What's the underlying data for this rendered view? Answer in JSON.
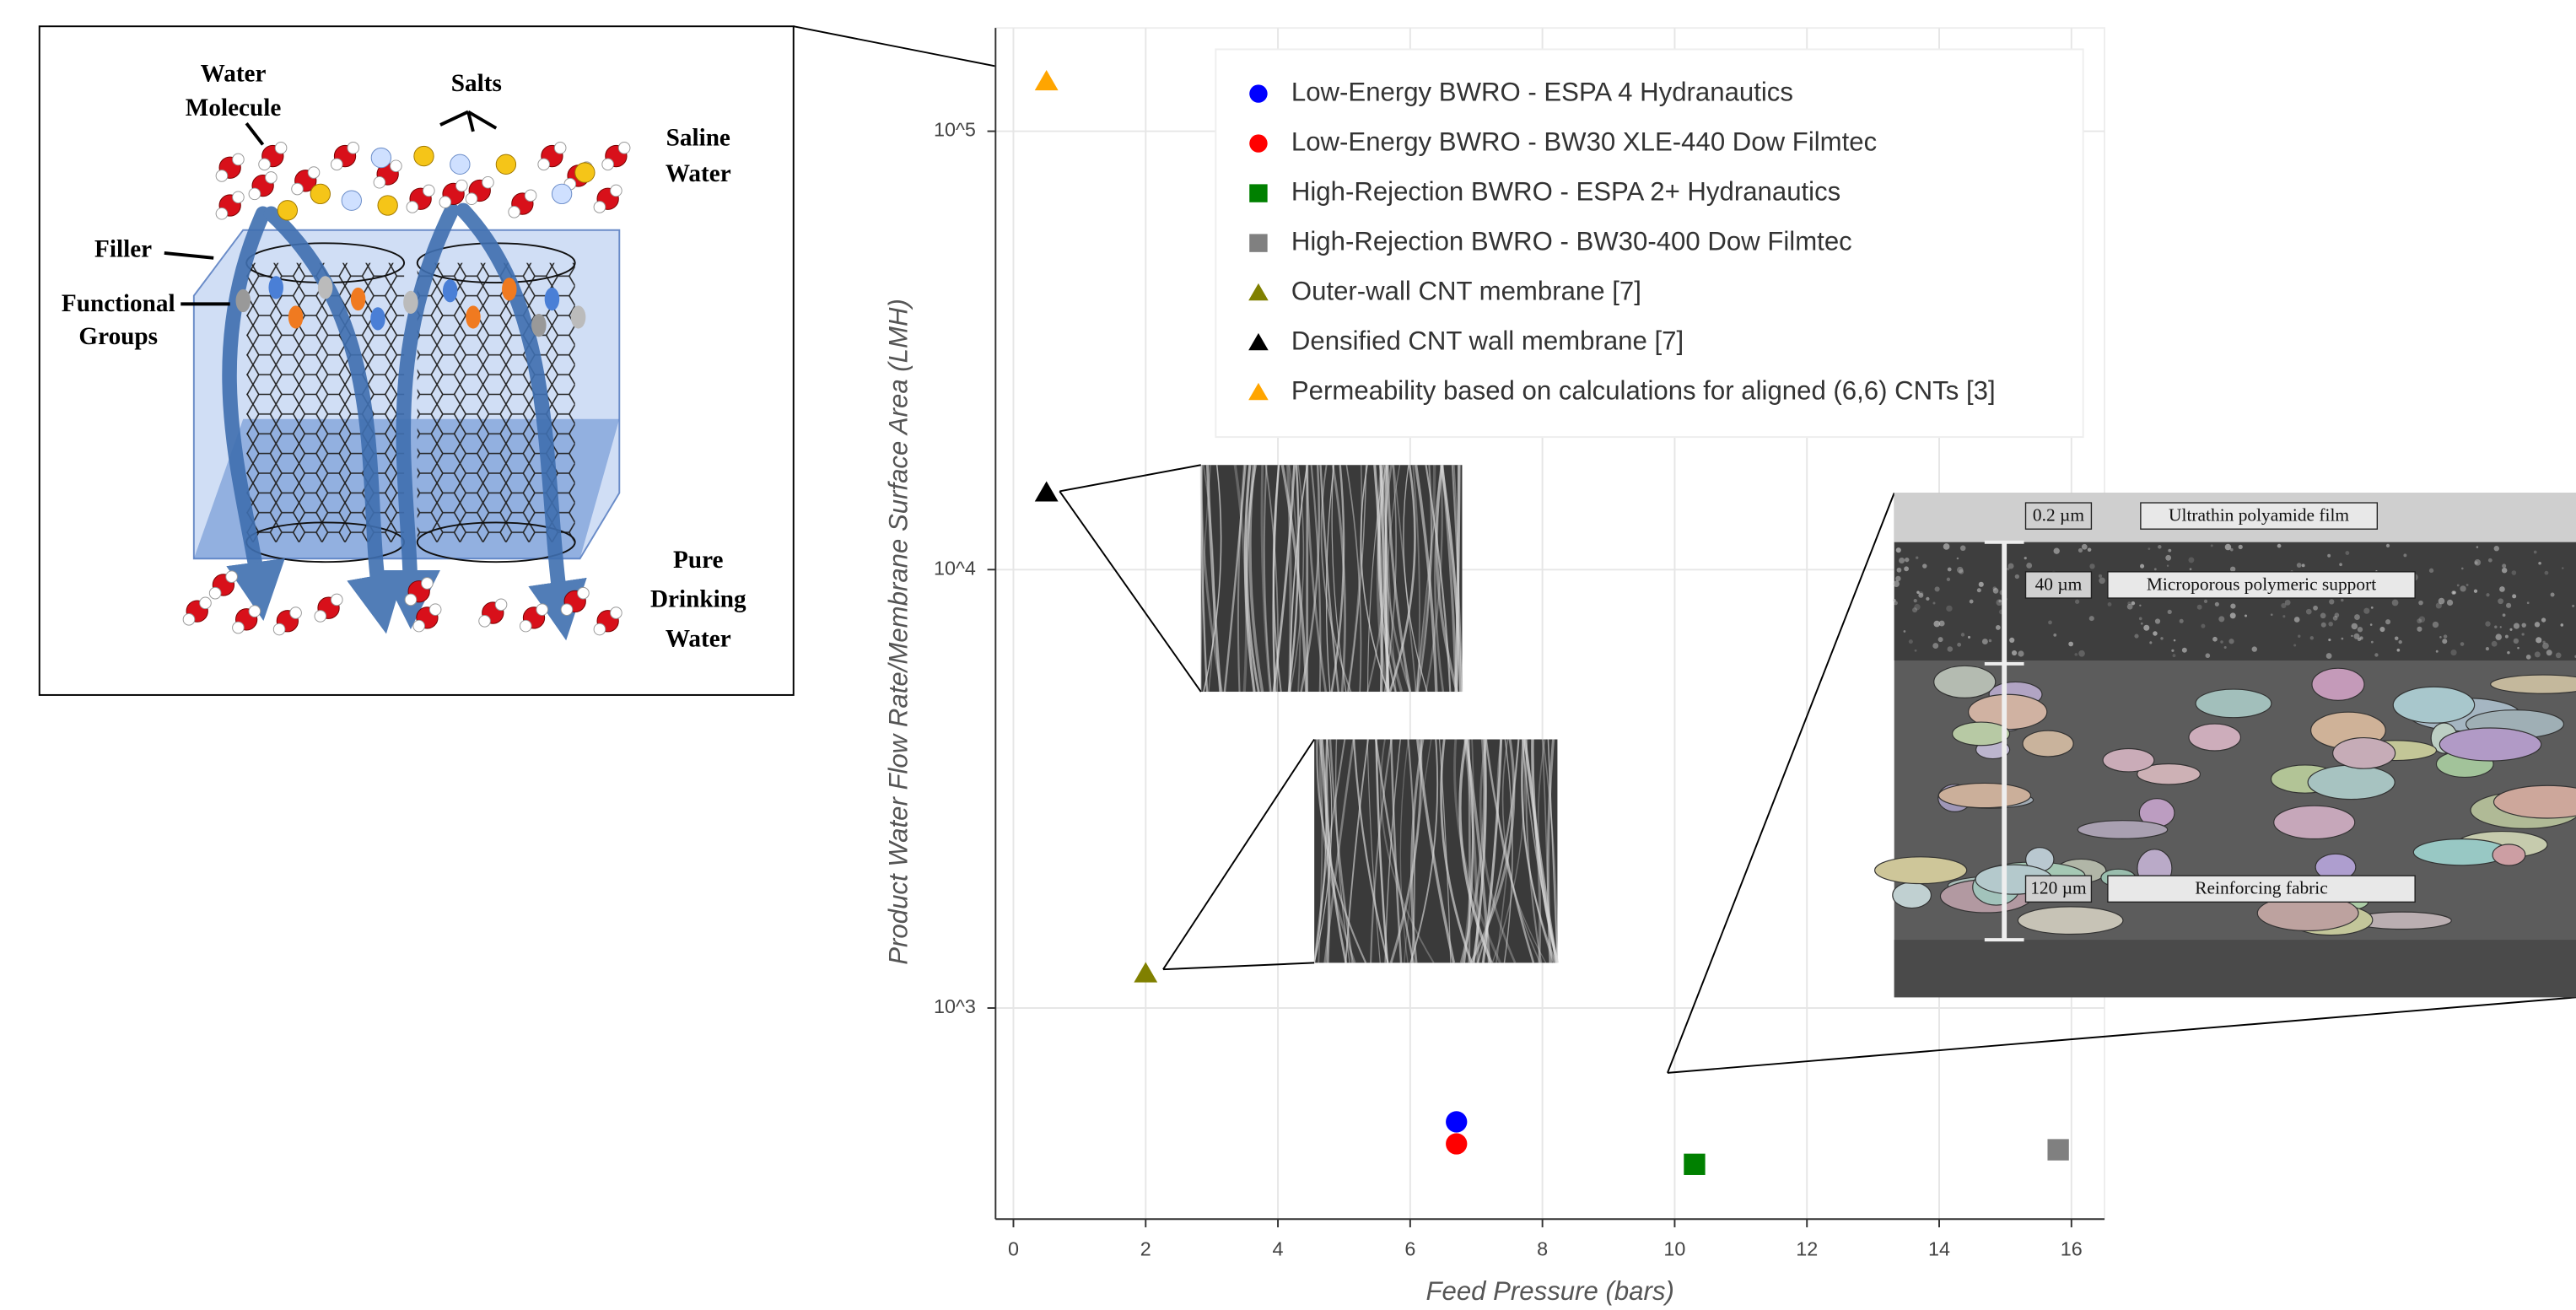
{
  "chart_data": {
    "type": "scatter",
    "x_label": "Feed Pressure (bars)",
    "y_label": "Product Water Flow Rate/Membrane Surface Area (LMH)",
    "xlim": [
      -0.27,
      16.5
    ],
    "ylim": [
      330,
      172000
    ],
    "y_scale": "log",
    "xticks": [
      0,
      2,
      4,
      6,
      8,
      10,
      12,
      14,
      16
    ],
    "yticks": [
      {
        "value": 1000,
        "label": "10^3"
      },
      {
        "value": 10000,
        "label": "10^4"
      },
      {
        "value": 100000,
        "label": "10^5"
      }
    ],
    "grid": true,
    "legend": "upper right",
    "series": [
      {
        "name": "Low-Energy BWRO - ESPA 4 Hydranautics",
        "color": "#0000ff",
        "marker": "circle",
        "x": [
          6.7
        ],
        "values": [
          550
        ]
      },
      {
        "name": "Low-Energy BWRO - BW30 XLE-440 Dow Filmtec",
        "color": "#ff0000",
        "marker": "circle",
        "x": [
          6.7
        ],
        "values": [
          490
        ]
      },
      {
        "name": "High-Rejection BWRO - ESPA 2+ Hydranautics",
        "color": "#008000",
        "marker": "square",
        "x": [
          10.3
        ],
        "values": [
          440
        ]
      },
      {
        "name": "High-Rejection BWRO - BW30-400 Dow Filmtec",
        "color": "#808080",
        "marker": "square",
        "x": [
          15.8
        ],
        "values": [
          475
        ]
      },
      {
        "name": "Outer-wall CNT membrane [7]",
        "color": "#808000",
        "marker": "triangle",
        "x": [
          2
        ],
        "values": [
          1200
        ]
      },
      {
        "name": "Densified CNT wall membrane [7]",
        "color": "#000000",
        "marker": "triangle",
        "x": [
          0.5
        ],
        "values": [
          15000
        ]
      },
      {
        "name": "Permeability based on calculations for aligned (6,6) CNTs [3]",
        "color": "#ffa500",
        "marker": "triangle",
        "x": [
          0.5
        ],
        "values": [
          130000
        ]
      }
    ],
    "annotations": {
      "diagram": [
        "Water",
        "Molecule",
        "Salts",
        "Saline",
        "Water",
        "Filler",
        "Functional",
        "Groups",
        "Pure",
        "Drinking",
        "Water"
      ],
      "micrograph": [
        "0.2 µm",
        "Ultrathin polyamide film",
        "40 µm",
        "Microporous polymeric support",
        "120 µm",
        "Reinforcing fabric"
      ]
    }
  }
}
